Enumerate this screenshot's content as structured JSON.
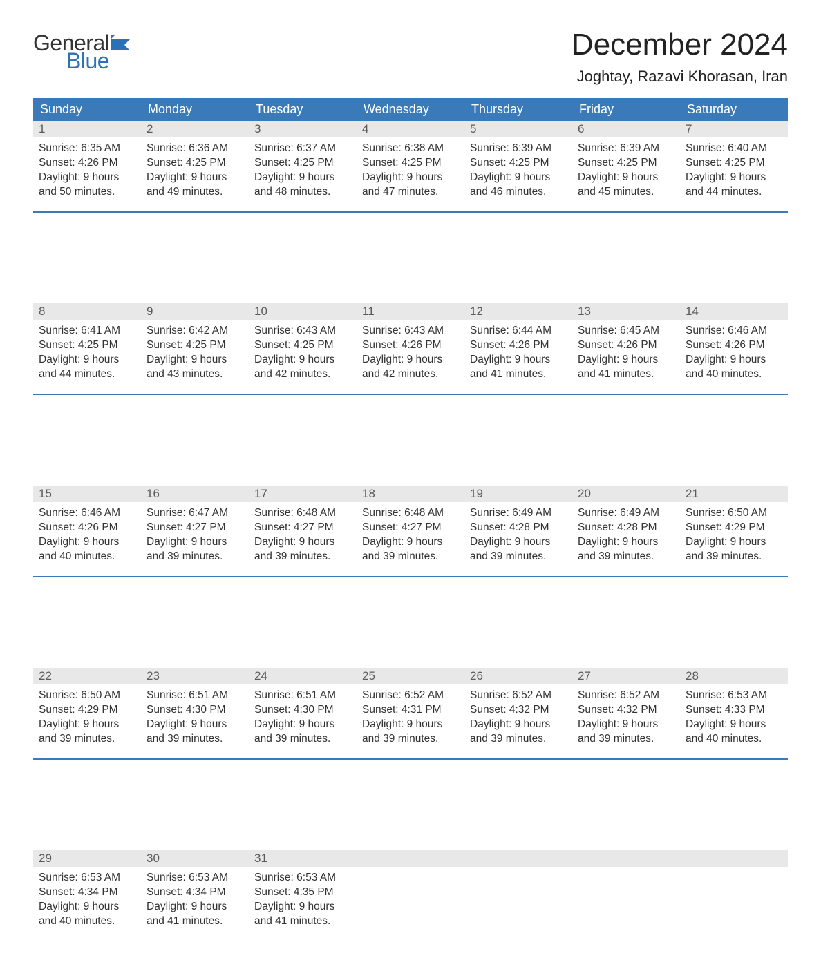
{
  "logo": {
    "text1": "General",
    "text2": "Blue",
    "icon_color": "#2b71b8"
  },
  "title": "December 2024",
  "location": "Joghtay, Razavi Khorasan, Iran",
  "colors": {
    "header_bg": "#3a7ab8",
    "header_text": "#ffffff",
    "daynum_bg": "#e8e8e8",
    "daynum_text": "#5a5a5a",
    "body_text": "#333333",
    "rule": "#3a7ab8"
  },
  "day_headers": [
    "Sunday",
    "Monday",
    "Tuesday",
    "Wednesday",
    "Thursday",
    "Friday",
    "Saturday"
  ],
  "weeks": [
    [
      {
        "n": "1",
        "sunrise": "6:35 AM",
        "sunset": "4:26 PM",
        "daylight": "9 hours and 50 minutes."
      },
      {
        "n": "2",
        "sunrise": "6:36 AM",
        "sunset": "4:25 PM",
        "daylight": "9 hours and 49 minutes."
      },
      {
        "n": "3",
        "sunrise": "6:37 AM",
        "sunset": "4:25 PM",
        "daylight": "9 hours and 48 minutes."
      },
      {
        "n": "4",
        "sunrise": "6:38 AM",
        "sunset": "4:25 PM",
        "daylight": "9 hours and 47 minutes."
      },
      {
        "n": "5",
        "sunrise": "6:39 AM",
        "sunset": "4:25 PM",
        "daylight": "9 hours and 46 minutes."
      },
      {
        "n": "6",
        "sunrise": "6:39 AM",
        "sunset": "4:25 PM",
        "daylight": "9 hours and 45 minutes."
      },
      {
        "n": "7",
        "sunrise": "6:40 AM",
        "sunset": "4:25 PM",
        "daylight": "9 hours and 44 minutes."
      }
    ],
    [
      {
        "n": "8",
        "sunrise": "6:41 AM",
        "sunset": "4:25 PM",
        "daylight": "9 hours and 44 minutes."
      },
      {
        "n": "9",
        "sunrise": "6:42 AM",
        "sunset": "4:25 PM",
        "daylight": "9 hours and 43 minutes."
      },
      {
        "n": "10",
        "sunrise": "6:43 AM",
        "sunset": "4:25 PM",
        "daylight": "9 hours and 42 minutes."
      },
      {
        "n": "11",
        "sunrise": "6:43 AM",
        "sunset": "4:26 PM",
        "daylight": "9 hours and 42 minutes."
      },
      {
        "n": "12",
        "sunrise": "6:44 AM",
        "sunset": "4:26 PM",
        "daylight": "9 hours and 41 minutes."
      },
      {
        "n": "13",
        "sunrise": "6:45 AM",
        "sunset": "4:26 PM",
        "daylight": "9 hours and 41 minutes."
      },
      {
        "n": "14",
        "sunrise": "6:46 AM",
        "sunset": "4:26 PM",
        "daylight": "9 hours and 40 minutes."
      }
    ],
    [
      {
        "n": "15",
        "sunrise": "6:46 AM",
        "sunset": "4:26 PM",
        "daylight": "9 hours and 40 minutes."
      },
      {
        "n": "16",
        "sunrise": "6:47 AM",
        "sunset": "4:27 PM",
        "daylight": "9 hours and 39 minutes."
      },
      {
        "n": "17",
        "sunrise": "6:48 AM",
        "sunset": "4:27 PM",
        "daylight": "9 hours and 39 minutes."
      },
      {
        "n": "18",
        "sunrise": "6:48 AM",
        "sunset": "4:27 PM",
        "daylight": "9 hours and 39 minutes."
      },
      {
        "n": "19",
        "sunrise": "6:49 AM",
        "sunset": "4:28 PM",
        "daylight": "9 hours and 39 minutes."
      },
      {
        "n": "20",
        "sunrise": "6:49 AM",
        "sunset": "4:28 PM",
        "daylight": "9 hours and 39 minutes."
      },
      {
        "n": "21",
        "sunrise": "6:50 AM",
        "sunset": "4:29 PM",
        "daylight": "9 hours and 39 minutes."
      }
    ],
    [
      {
        "n": "22",
        "sunrise": "6:50 AM",
        "sunset": "4:29 PM",
        "daylight": "9 hours and 39 minutes."
      },
      {
        "n": "23",
        "sunrise": "6:51 AM",
        "sunset": "4:30 PM",
        "daylight": "9 hours and 39 minutes."
      },
      {
        "n": "24",
        "sunrise": "6:51 AM",
        "sunset": "4:30 PM",
        "daylight": "9 hours and 39 minutes."
      },
      {
        "n": "25",
        "sunrise": "6:52 AM",
        "sunset": "4:31 PM",
        "daylight": "9 hours and 39 minutes."
      },
      {
        "n": "26",
        "sunrise": "6:52 AM",
        "sunset": "4:32 PM",
        "daylight": "9 hours and 39 minutes."
      },
      {
        "n": "27",
        "sunrise": "6:52 AM",
        "sunset": "4:32 PM",
        "daylight": "9 hours and 39 minutes."
      },
      {
        "n": "28",
        "sunrise": "6:53 AM",
        "sunset": "4:33 PM",
        "daylight": "9 hours and 40 minutes."
      }
    ],
    [
      {
        "n": "29",
        "sunrise": "6:53 AM",
        "sunset": "4:34 PM",
        "daylight": "9 hours and 40 minutes."
      },
      {
        "n": "30",
        "sunrise": "6:53 AM",
        "sunset": "4:34 PM",
        "daylight": "9 hours and 41 minutes."
      },
      {
        "n": "31",
        "sunrise": "6:53 AM",
        "sunset": "4:35 PM",
        "daylight": "9 hours and 41 minutes."
      },
      null,
      null,
      null,
      null
    ]
  ],
  "labels": {
    "sunrise": "Sunrise:",
    "sunset": "Sunset:",
    "daylight": "Daylight:"
  }
}
